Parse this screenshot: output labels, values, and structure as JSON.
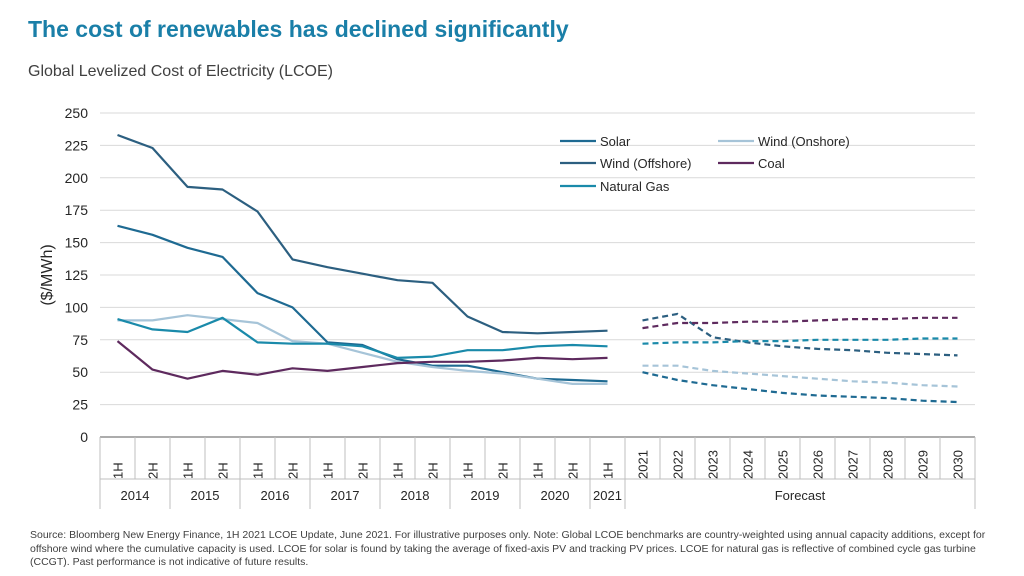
{
  "title": "The cost of renewables has declined significantly",
  "subtitle": "Global Levelized Cost of Electricity (LCOE)",
  "source": "Source: Bloomberg New Energy Finance, 1H 2021 LCOE Update, June 2021. For illustrative purposes only. Note: Global LCOE benchmarks are country-weighted using annual capacity additions, except for offshore wind where the cumulative capacity is used. LCOE for solar is found by taking the average of fixed-axis PV and tracking PV prices. LCOE for natural gas  is reflective of combined cycle gas turbine (CCGT). Past performance is not indicative of future results.",
  "chart_data": {
    "type": "line",
    "title": "The cost of renewables has declined significantly",
    "subtitle": "Global Levelized Cost of Electricity (LCOE)",
    "ylabel": "($/MWh)",
    "xlabel": "",
    "ylim": [
      0,
      250
    ],
    "yticks": [
      "0",
      "25",
      "50",
      "75",
      "100",
      "125",
      "150",
      "175",
      "200",
      "225",
      "250"
    ],
    "grid": true,
    "legend_position": "top-right",
    "categories": [
      "1H",
      "2H",
      "1H",
      "2H",
      "1H",
      "2H",
      "1H",
      "2H",
      "1H",
      "2H",
      "1H",
      "2H",
      "1H",
      "2H",
      "1H",
      "2021",
      "2022",
      "2023",
      "2024",
      "2025",
      "2026",
      "2027",
      "2028",
      "2029",
      "2030"
    ],
    "groups": [
      {
        "label": "2014",
        "span": 2
      },
      {
        "label": "2015",
        "span": 2
      },
      {
        "label": "2016",
        "span": 2
      },
      {
        "label": "2017",
        "span": 2
      },
      {
        "label": "2018",
        "span": 2
      },
      {
        "label": "2019",
        "span": 2
      },
      {
        "label": "2020",
        "span": 2
      },
      {
        "label": "2021",
        "span": 1
      },
      {
        "label": "Forecast",
        "span": 10
      }
    ],
    "series": [
      {
        "name": "Solar",
        "color": "#1e6a92",
        "historical": [
          163,
          156,
          146,
          139,
          111,
          100,
          73,
          71,
          60,
          55,
          55,
          50,
          45,
          44,
          43
        ],
        "forecast": [
          50,
          44,
          40,
          37,
          34,
          32,
          31,
          30,
          28,
          27
        ]
      },
      {
        "name": "Wind (Onshore)",
        "color": "#a6c4d8",
        "historical": [
          90,
          90,
          94,
          91,
          88,
          74,
          72,
          65,
          58,
          54,
          51,
          49,
          45,
          41,
          41
        ],
        "forecast": [
          55,
          55,
          51,
          49,
          47,
          45,
          43,
          42,
          40,
          39
        ]
      },
      {
        "name": "Wind (Offshore)",
        "color": "#2c5f80",
        "historical": [
          233,
          223,
          193,
          191,
          174,
          137,
          131,
          126,
          121,
          119,
          93,
          81,
          80,
          81,
          82
        ],
        "forecast": [
          90,
          95,
          77,
          73,
          70,
          68,
          67,
          65,
          64,
          63
        ]
      },
      {
        "name": "Coal",
        "color": "#5e2a5e",
        "historical": [
          74,
          52,
          45,
          51,
          48,
          53,
          51,
          54,
          57,
          58,
          58,
          59,
          61,
          60,
          61
        ],
        "forecast": [
          84,
          88,
          88,
          89,
          89,
          90,
          91,
          91,
          92,
          92
        ]
      },
      {
        "name": "Natural Gas",
        "color": "#1a8aaa",
        "historical": [
          91,
          83,
          81,
          92,
          73,
          72,
          72,
          70,
          61,
          62,
          67,
          67,
          70,
          71,
          70
        ],
        "forecast": [
          72,
          73,
          73,
          74,
          74,
          75,
          75,
          75,
          76,
          76
        ]
      }
    ]
  }
}
